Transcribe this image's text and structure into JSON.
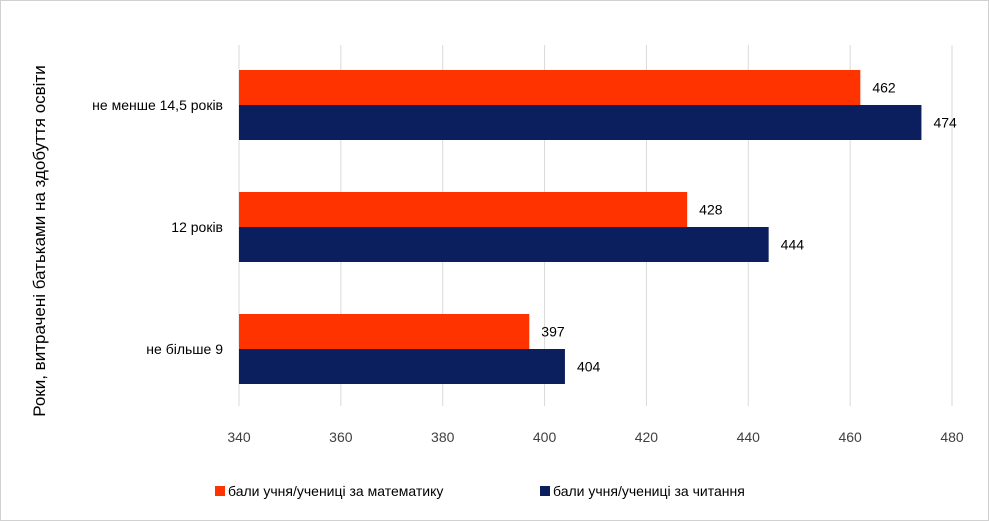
{
  "chart_data": {
    "type": "bar",
    "orientation": "horizontal",
    "categories": [
      "не більше 9",
      "12  років",
      "не менше 14,5  років"
    ],
    "series": [
      {
        "name": "бали учня/учениці за математику",
        "color": "#ff3300",
        "values": [
          397,
          428,
          462
        ]
      },
      {
        "name": "бали учня/учениці за читання",
        "color": "#0b1f5e",
        "values": [
          404,
          444,
          474
        ]
      }
    ],
    "xlim": [
      340,
      480
    ],
    "xticks": [
      340,
      360,
      380,
      400,
      420,
      440,
      460,
      480
    ],
    "ylabel": "Роки, витрачені батьками на здобуття освіти",
    "xlabel": "",
    "title": "",
    "grid": "vertical",
    "legend_position": "bottom",
    "data_labels": true
  }
}
